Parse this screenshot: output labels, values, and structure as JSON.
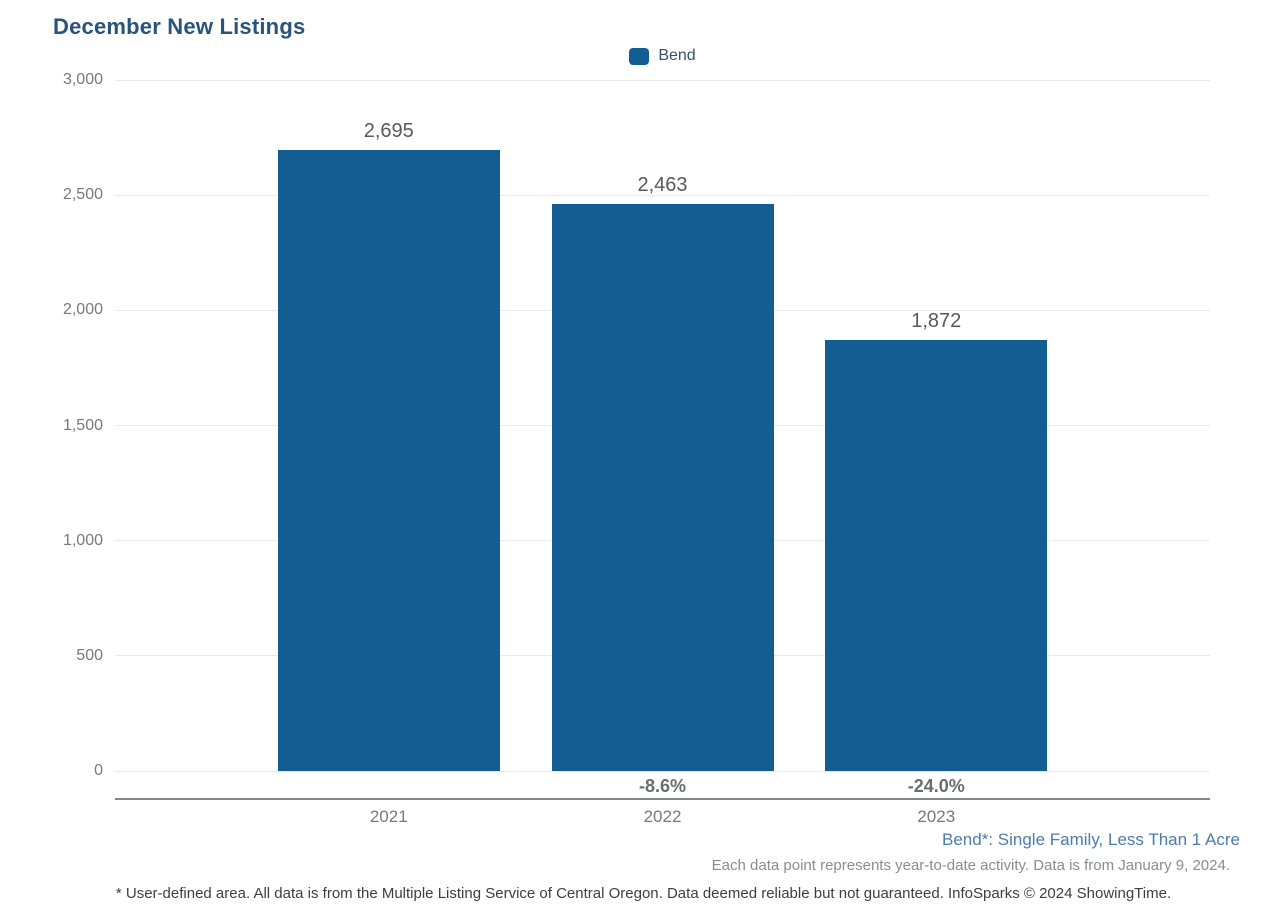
{
  "page": {
    "title": "December New Listings"
  },
  "chart_data": {
    "type": "bar",
    "title": "December New Listings",
    "categories": [
      "2021",
      "2022",
      "2023"
    ],
    "series": [
      {
        "name": "Bend",
        "values": [
          2695,
          2463,
          1872
        ]
      }
    ],
    "value_labels": [
      "2,695",
      "2,463",
      "1,872"
    ],
    "pct_change_labels": [
      "",
      "-8.6%",
      "-24.0%"
    ],
    "ylim": [
      0,
      3000
    ],
    "ytick_interval": 500,
    "ytick_labels": [
      "0",
      "500",
      "1,000",
      "1,500",
      "2,000",
      "2,500",
      "3,000"
    ],
    "grid": "horizontal-only",
    "legend_position": "top-center",
    "bar_color": "#125E92"
  },
  "legend": {
    "items": [
      {
        "label": "Bend",
        "color": "#125E92"
      }
    ]
  },
  "footnotes": {
    "segment": "Bend*: Single Family, Less Than 1 Acre",
    "data_note": "Each data point represents year-to-date activity. Data is from January 9, 2024.",
    "disclaimer": "* User-defined area. All data is from the Multiple Listing Service of Central Oregon. Data deemed reliable but not guaranteed. InfoSparks © 2024 ShowingTime."
  },
  "colors": {
    "title": "#29547A",
    "bar": "#125E92",
    "segment_note": "#4C7BAD",
    "gridline": "#E9E9E9",
    "axis_line": "#85878A",
    "value_label": "#58595B",
    "pct_label": "#6B6C6E",
    "tick_label": "#77787B"
  }
}
